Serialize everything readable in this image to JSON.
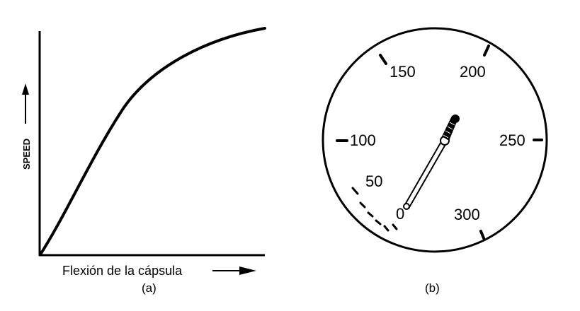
{
  "panel_a": {
    "caption": "(a)",
    "y_axis_label": "SPEED",
    "x_axis_label": "Flexión de la cápsula",
    "curve": {
      "description_shape": "concave-increasing"
    }
  },
  "panel_b": {
    "caption": "(b)",
    "dial_labels": [
      "0",
      "50",
      "100",
      "150",
      "200",
      "250",
      "300"
    ],
    "needle_value": 225
  },
  "colors": {
    "ink": "#000000",
    "background": "#ffffff"
  }
}
